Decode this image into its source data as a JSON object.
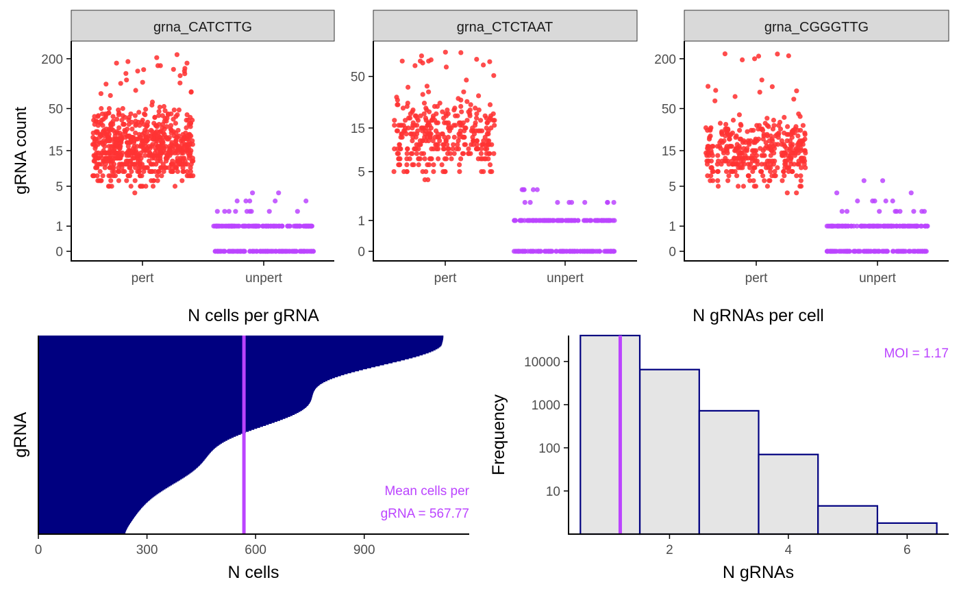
{
  "colors": {
    "pert": "#ff3333",
    "unpert": "#bb44ff",
    "bar": "#000080",
    "accent": "#bb44ff",
    "strip_fill": "#d9d9d9",
    "hist_fill": "#e5e5e5",
    "axis": "#000000",
    "tick_text": "#4d4d4d"
  },
  "chart_data": [
    {
      "type": "scatter",
      "panel": "top-left",
      "strip_label": "grna_CATCTTG",
      "ylabel": "gRNA count",
      "xlabel": "",
      "categories": [
        "pert",
        "unpert"
      ],
      "y_scale": "log1p",
      "y_ticks": [
        0,
        1,
        5,
        15,
        50,
        200
      ],
      "ylim": [
        0,
        260
      ],
      "y_max_observed": 250,
      "series": [
        {
          "category": "pert",
          "n_points": 700,
          "min": 3,
          "typical_max": 70,
          "max": 250
        },
        {
          "category": "unpert",
          "values_main": [
            0,
            1
          ],
          "sparse_values": [
            2,
            3,
            4
          ]
        }
      ]
    },
    {
      "type": "scatter",
      "panel": "top-middle",
      "strip_label": "grna_CTCTAAT",
      "ylabel": "",
      "xlabel": "",
      "categories": [
        "pert",
        "unpert"
      ],
      "y_scale": "log1p",
      "y_ticks": [
        0,
        1,
        5,
        15,
        50
      ],
      "ylim": [
        0,
        95
      ],
      "y_max_observed": 90,
      "series": [
        {
          "category": "pert",
          "n_points": 350,
          "min": 3,
          "typical_max": 45,
          "max": 90
        },
        {
          "category": "unpert",
          "values_main": [
            0,
            1
          ],
          "sparse_values": [
            2,
            3
          ]
        }
      ]
    },
    {
      "type": "scatter",
      "panel": "top-right",
      "strip_label": "grna_CGGGTTG",
      "ylabel": "",
      "xlabel": "",
      "categories": [
        "pert",
        "unpert"
      ],
      "y_scale": "log1p",
      "y_ticks": [
        0,
        1,
        5,
        15,
        50,
        200
      ],
      "ylim": [
        0,
        260
      ],
      "y_max_observed": 250,
      "series": [
        {
          "category": "pert",
          "n_points": 400,
          "min": 3,
          "typical_max": 60,
          "max": 250
        },
        {
          "category": "unpert",
          "values_main": [
            0,
            1
          ],
          "sparse_values": [
            2,
            3,
            4,
            6
          ]
        }
      ]
    },
    {
      "type": "bar",
      "panel": "bottom-left",
      "title": "N cells per gRNA",
      "xlabel": "N cells",
      "ylabel": "gRNA",
      "orientation": "horizontal",
      "sorted": "descending from top",
      "x_ticks": [
        0,
        300,
        600,
        900
      ],
      "xlim": [
        0,
        1190
      ],
      "n_grnas": 200,
      "min_cells": 240,
      "max_cells": 1190,
      "mean_line": 567.77,
      "annotation_line1": "Mean cells per",
      "annotation_line2": "gRNA = 567.77"
    },
    {
      "type": "bar",
      "panel": "bottom-right",
      "title": "N gRNAs per cell",
      "xlabel": "N gRNAs",
      "ylabel": "Frequency",
      "y_scale": "log10",
      "x_ticks": [
        2,
        4,
        6
      ],
      "y_ticks": [
        10,
        100,
        1000,
        10000
      ],
      "xlim": [
        0.3,
        6.7
      ],
      "ylim": [
        1,
        40000
      ],
      "bins": [
        {
          "x": 1,
          "count": 40000
        },
        {
          "x": 2,
          "count": 6500
        },
        {
          "x": 3,
          "count": 720
        },
        {
          "x": 4,
          "count": 70
        },
        {
          "x": 5,
          "count": 4.5
        },
        {
          "x": 6,
          "count": 1.8
        }
      ],
      "moi_line": 1.17,
      "annotation": "MOI = 1.17"
    }
  ]
}
